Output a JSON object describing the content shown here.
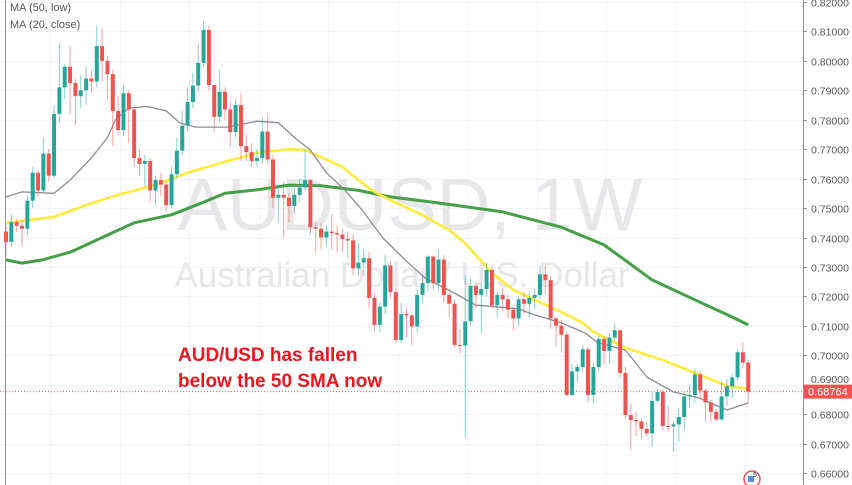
{
  "legend": {
    "items": [
      "MA (50, low)",
      "MA (20, close)"
    ]
  },
  "watermark": {
    "symbol": "AUDUSD, 1W",
    "description": "Australian Dollar / U.S. Dollar"
  },
  "annotation": {
    "line1": "AUD/USD has fallen",
    "line2": "below the 50 SMA now"
  },
  "colors": {
    "up": "#26a69a",
    "down": "#ef5350",
    "ma20": "#8c8c94",
    "ma50": "#ffeb3b",
    "ma_long": "#43a047",
    "annotation": "#f0141e",
    "price_label": "#ef5350"
  },
  "icons": {
    "bottom_right": "flag-marker-icon",
    "bottom_right_badge": "5"
  },
  "chart_data": {
    "type": "candlestick",
    "symbol": "AUDUSD",
    "interval": "1W",
    "ylim": [
      0.66,
      0.82
    ],
    "yticks": [
      "0.82000",
      "0.81000",
      "0.80000",
      "0.79000",
      "0.78000",
      "0.77000",
      "0.76000",
      "0.75000",
      "0.74000",
      "0.73000",
      "0.72000",
      "0.71000",
      "0.70000",
      "0.69000",
      "0.68000",
      "0.67000",
      "0.66000"
    ],
    "grid": true,
    "last_price": "0.68764",
    "candles_ohlc": [
      [
        0.742,
        0.744,
        0.7335,
        0.7385
      ],
      [
        0.7385,
        0.748,
        0.737,
        0.7452
      ],
      [
        0.7452,
        0.7465,
        0.742,
        0.744
      ],
      [
        0.744,
        0.746,
        0.7368,
        0.743
      ],
      [
        0.743,
        0.754,
        0.741,
        0.7525
      ],
      [
        0.7525,
        0.764,
        0.75,
        0.762
      ],
      [
        0.762,
        0.763,
        0.754,
        0.756
      ],
      [
        0.756,
        0.774,
        0.755,
        0.7685
      ],
      [
        0.7685,
        0.77,
        0.759,
        0.761
      ],
      [
        0.761,
        0.785,
        0.76,
        0.782
      ],
      [
        0.782,
        0.806,
        0.779,
        0.791
      ],
      [
        0.791,
        0.799,
        0.787,
        0.798
      ],
      [
        0.798,
        0.805,
        0.782,
        0.7925
      ],
      [
        0.7925,
        0.794,
        0.778,
        0.788
      ],
      [
        0.788,
        0.795,
        0.784,
        0.79
      ],
      [
        0.79,
        0.798,
        0.785,
        0.794
      ],
      [
        0.794,
        0.797,
        0.789,
        0.793
      ],
      [
        0.793,
        0.812,
        0.791,
        0.805
      ],
      [
        0.805,
        0.811,
        0.793,
        0.8
      ],
      [
        0.8,
        0.8015,
        0.787,
        0.7955
      ],
      [
        0.7955,
        0.797,
        0.771,
        0.783
      ],
      [
        0.783,
        0.788,
        0.775,
        0.7765
      ],
      [
        0.7765,
        0.792,
        0.7745,
        0.789
      ],
      [
        0.789,
        0.79,
        0.772,
        0.7835
      ],
      [
        0.7835,
        0.785,
        0.764,
        0.767
      ],
      [
        0.767,
        0.77,
        0.761,
        0.765
      ],
      [
        0.765,
        0.768,
        0.757,
        0.766
      ],
      [
        0.766,
        0.767,
        0.752,
        0.756
      ],
      [
        0.756,
        0.761,
        0.751,
        0.7595
      ],
      [
        0.7595,
        0.762,
        0.754,
        0.758
      ],
      [
        0.758,
        0.759,
        0.749,
        0.751
      ],
      [
        0.751,
        0.764,
        0.75,
        0.7615
      ],
      [
        0.7615,
        0.774,
        0.76,
        0.7695
      ],
      [
        0.7695,
        0.783,
        0.768,
        0.778
      ],
      [
        0.778,
        0.791,
        0.776,
        0.786
      ],
      [
        0.786,
        0.796,
        0.784,
        0.7916
      ],
      [
        0.7916,
        0.806,
        0.789,
        0.7993
      ],
      [
        0.7993,
        0.8135,
        0.798,
        0.8105
      ],
      [
        0.8105,
        0.812,
        0.79,
        0.7918
      ],
      [
        0.7918,
        0.791,
        0.776,
        0.781
      ],
      [
        0.781,
        0.797,
        0.779,
        0.7895
      ],
      [
        0.7895,
        0.791,
        0.78,
        0.7835
      ],
      [
        0.7835,
        0.786,
        0.771,
        0.7758
      ],
      [
        0.7758,
        0.787,
        0.774,
        0.785
      ],
      [
        0.785,
        0.789,
        0.766,
        0.771
      ],
      [
        0.771,
        0.775,
        0.766,
        0.769
      ],
      [
        0.769,
        0.772,
        0.764,
        0.766
      ],
      [
        0.766,
        0.77,
        0.764,
        0.767
      ],
      [
        0.767,
        0.781,
        0.765,
        0.776
      ],
      [
        0.776,
        0.782,
        0.765,
        0.7665
      ],
      [
        0.7665,
        0.768,
        0.75,
        0.7535
      ],
      [
        0.7535,
        0.757,
        0.745,
        0.7545
      ],
      [
        0.7545,
        0.759,
        0.74,
        0.7535
      ],
      [
        0.7535,
        0.755,
        0.745,
        0.7507
      ],
      [
        0.7507,
        0.757,
        0.748,
        0.7545
      ],
      [
        0.7545,
        0.76,
        0.752,
        0.757
      ],
      [
        0.757,
        0.77,
        0.756,
        0.7595
      ],
      [
        0.7595,
        0.76,
        0.741,
        0.7435
      ],
      [
        0.7435,
        0.745,
        0.735,
        0.743
      ],
      [
        0.743,
        0.745,
        0.736,
        0.74
      ],
      [
        0.74,
        0.744,
        0.737,
        0.742
      ],
      [
        0.742,
        0.748,
        0.736,
        0.7415
      ],
      [
        0.7415,
        0.744,
        0.735,
        0.741
      ],
      [
        0.741,
        0.743,
        0.735,
        0.7395
      ],
      [
        0.7395,
        0.742,
        0.733,
        0.739
      ],
      [
        0.739,
        0.741,
        0.727,
        0.7295
      ],
      [
        0.7295,
        0.738,
        0.727,
        0.7315
      ],
      [
        0.7315,
        0.736,
        0.727,
        0.733
      ],
      [
        0.733,
        0.735,
        0.716,
        0.7195
      ],
      [
        0.7195,
        0.721,
        0.7085,
        0.7103
      ],
      [
        0.7103,
        0.718,
        0.708,
        0.7165
      ],
      [
        0.7165,
        0.734,
        0.714,
        0.7305
      ],
      [
        0.7305,
        0.732,
        0.7195,
        0.7215
      ],
      [
        0.7215,
        0.723,
        0.704,
        0.7052
      ],
      [
        0.7052,
        0.718,
        0.704,
        0.714
      ],
      [
        0.714,
        0.716,
        0.706,
        0.7135
      ],
      [
        0.7135,
        0.714,
        0.7035,
        0.7098
      ],
      [
        0.7098,
        0.7225,
        0.708,
        0.7205
      ],
      [
        0.7205,
        0.727,
        0.718,
        0.7245
      ],
      [
        0.7245,
        0.734,
        0.722,
        0.7335
      ],
      [
        0.7335,
        0.734,
        0.7225,
        0.7245
      ],
      [
        0.7245,
        0.736,
        0.722,
        0.7325
      ],
      [
        0.7325,
        0.734,
        0.718,
        0.7205
      ],
      [
        0.7205,
        0.7215,
        0.713,
        0.7175
      ],
      [
        0.7175,
        0.719,
        0.7025,
        0.7035
      ],
      [
        0.7035,
        0.709,
        0.7005,
        0.7033
      ],
      [
        0.7033,
        0.727,
        0.6722,
        0.7115
      ],
      [
        0.7115,
        0.726,
        0.71,
        0.7235
      ],
      [
        0.7235,
        0.725,
        0.716,
        0.7205
      ],
      [
        0.7205,
        0.7245,
        0.7075,
        0.7225
      ],
      [
        0.7225,
        0.7315,
        0.72,
        0.729
      ],
      [
        0.729,
        0.7305,
        0.716,
        0.717
      ],
      [
        0.717,
        0.7215,
        0.7125,
        0.7205
      ],
      [
        0.7205,
        0.723,
        0.715,
        0.719
      ],
      [
        0.719,
        0.7205,
        0.7125,
        0.7155
      ],
      [
        0.7155,
        0.717,
        0.7085,
        0.7125
      ],
      [
        0.7125,
        0.72,
        0.71,
        0.719
      ],
      [
        0.719,
        0.7215,
        0.714,
        0.7175
      ],
      [
        0.7175,
        0.7215,
        0.713,
        0.7195
      ],
      [
        0.7195,
        0.7225,
        0.7155,
        0.7205
      ],
      [
        0.7205,
        0.7305,
        0.719,
        0.7275
      ],
      [
        0.7275,
        0.7305,
        0.7205,
        0.7255
      ],
      [
        0.7255,
        0.727,
        0.709,
        0.7125
      ],
      [
        0.7125,
        0.713,
        0.703,
        0.71
      ],
      [
        0.71,
        0.712,
        0.701,
        0.707
      ],
      [
        0.707,
        0.708,
        0.686,
        0.6865
      ],
      [
        0.6865,
        0.697,
        0.686,
        0.6945
      ],
      [
        0.6945,
        0.697,
        0.691,
        0.696
      ],
      [
        0.696,
        0.7035,
        0.6945,
        0.702
      ],
      [
        0.702,
        0.703,
        0.684,
        0.6865
      ],
      [
        0.6865,
        0.6975,
        0.684,
        0.696
      ],
      [
        0.696,
        0.7065,
        0.6945,
        0.7055
      ],
      [
        0.7055,
        0.7065,
        0.697,
        0.7015
      ],
      [
        0.7015,
        0.7075,
        0.697,
        0.706
      ],
      [
        0.706,
        0.711,
        0.705,
        0.7085
      ],
      [
        0.7085,
        0.7085,
        0.6925,
        0.694
      ],
      [
        0.694,
        0.696,
        0.6785,
        0.6797
      ],
      [
        0.6797,
        0.6835,
        0.668,
        0.678
      ],
      [
        0.678,
        0.681,
        0.6725,
        0.6775
      ],
      [
        0.6775,
        0.6785,
        0.6715,
        0.675
      ],
      [
        0.675,
        0.6775,
        0.6725,
        0.6735
      ],
      [
        0.6735,
        0.6875,
        0.669,
        0.6845
      ],
      [
        0.6845,
        0.6885,
        0.684,
        0.6875
      ],
      [
        0.6875,
        0.6885,
        0.6745,
        0.676
      ],
      [
        0.676,
        0.683,
        0.674,
        0.6758
      ],
      [
        0.6758,
        0.6775,
        0.667,
        0.6765
      ],
      [
        0.6765,
        0.682,
        0.6705,
        0.679
      ],
      [
        0.679,
        0.6875,
        0.6745,
        0.686
      ],
      [
        0.686,
        0.6895,
        0.682,
        0.6865
      ],
      [
        0.6865,
        0.6955,
        0.684,
        0.6935
      ],
      [
        0.6935,
        0.6945,
        0.6855,
        0.688
      ],
      [
        0.688,
        0.6885,
        0.6775,
        0.684
      ],
      [
        0.684,
        0.685,
        0.6775,
        0.6808
      ],
      [
        0.6808,
        0.6815,
        0.6775,
        0.6782
      ],
      [
        0.6782,
        0.691,
        0.6775,
        0.686
      ],
      [
        0.686,
        0.692,
        0.683,
        0.6895
      ],
      [
        0.6895,
        0.6935,
        0.6855,
        0.6925
      ],
      [
        0.6925,
        0.702,
        0.6915,
        0.701
      ],
      [
        0.701,
        0.7045,
        0.6955,
        0.6975
      ],
      [
        0.6975,
        0.6985,
        0.684,
        0.6876
      ]
    ],
    "series": [
      {
        "name": "MA (20, close)",
        "points": [
          [
            0,
            0.7538
          ],
          [
            3,
            0.7555
          ],
          [
            9,
            0.755
          ],
          [
            12,
            0.7595
          ],
          [
            16,
            0.767
          ],
          [
            19,
            0.774
          ],
          [
            20.5,
            0.78
          ],
          [
            23,
            0.784
          ],
          [
            26.5,
            0.7845
          ],
          [
            30,
            0.783
          ],
          [
            32.5,
            0.779
          ],
          [
            35.5,
            0.7775
          ],
          [
            41.5,
            0.7775
          ],
          [
            47,
            0.7795
          ],
          [
            51,
            0.779
          ],
          [
            54,
            0.774
          ],
          [
            57,
            0.7697
          ],
          [
            60,
            0.762
          ],
          [
            63.5,
            0.756
          ],
          [
            66.7,
            0.7493
          ],
          [
            70.5,
            0.74
          ],
          [
            74.8,
            0.7323
          ],
          [
            78.5,
            0.7262
          ],
          [
            83.6,
            0.7215
          ],
          [
            88,
            0.717
          ],
          [
            91.6,
            0.7165
          ],
          [
            96,
            0.7157
          ],
          [
            99,
            0.7137
          ],
          [
            104,
            0.711
          ],
          [
            108.5,
            0.7075
          ],
          [
            110.9,
            0.7042
          ],
          [
            116,
            0.7018
          ],
          [
            120,
            0.6926
          ],
          [
            125,
            0.6875
          ],
          [
            129.7,
            0.6855
          ],
          [
            135,
            0.6814
          ],
          [
            139,
            0.6838
          ]
        ]
      },
      {
        "name": "MA (50, low)",
        "points": [
          [
            0,
            0.745
          ],
          [
            9,
            0.747
          ],
          [
            15,
            0.751
          ],
          [
            21,
            0.7545
          ],
          [
            28,
            0.7578
          ],
          [
            34,
            0.762
          ],
          [
            37,
            0.7636
          ],
          [
            41,
            0.7657
          ],
          [
            47,
            0.7687
          ],
          [
            53,
            0.77
          ],
          [
            56,
            0.7697
          ],
          [
            59,
            0.7673
          ],
          [
            63,
            0.764
          ],
          [
            66,
            0.7595
          ],
          [
            69,
            0.7555
          ],
          [
            72,
            0.7527
          ],
          [
            78,
            0.7476
          ],
          [
            83,
            0.7425
          ],
          [
            86,
            0.738
          ],
          [
            91,
            0.728
          ],
          [
            95,
            0.7222
          ],
          [
            100,
            0.718
          ],
          [
            104,
            0.7147
          ],
          [
            108,
            0.711
          ],
          [
            110,
            0.708
          ],
          [
            116,
            0.7025
          ],
          [
            123,
            0.6984
          ],
          [
            129,
            0.694
          ],
          [
            135,
            0.6896
          ],
          [
            139,
            0.6886
          ]
        ]
      },
      {
        "points": [
          [
            0,
            0.7324
          ],
          [
            3,
            0.7313
          ],
          [
            7,
            0.7325
          ],
          [
            12,
            0.735
          ],
          [
            18,
            0.74
          ],
          [
            24,
            0.745
          ],
          [
            31,
            0.7477
          ],
          [
            37,
            0.752
          ],
          [
            41,
            0.755
          ],
          [
            47,
            0.7562
          ],
          [
            53,
            0.7578
          ],
          [
            59,
            0.7576
          ],
          [
            66,
            0.756
          ],
          [
            72,
            0.7538
          ],
          [
            80,
            0.752
          ],
          [
            93,
            0.7487
          ],
          [
            104,
            0.7435
          ],
          [
            112,
            0.7375
          ],
          [
            121,
            0.7256
          ],
          [
            130,
            0.718
          ],
          [
            136,
            0.713
          ],
          [
            139,
            0.7103
          ]
        ]
      }
    ]
  }
}
